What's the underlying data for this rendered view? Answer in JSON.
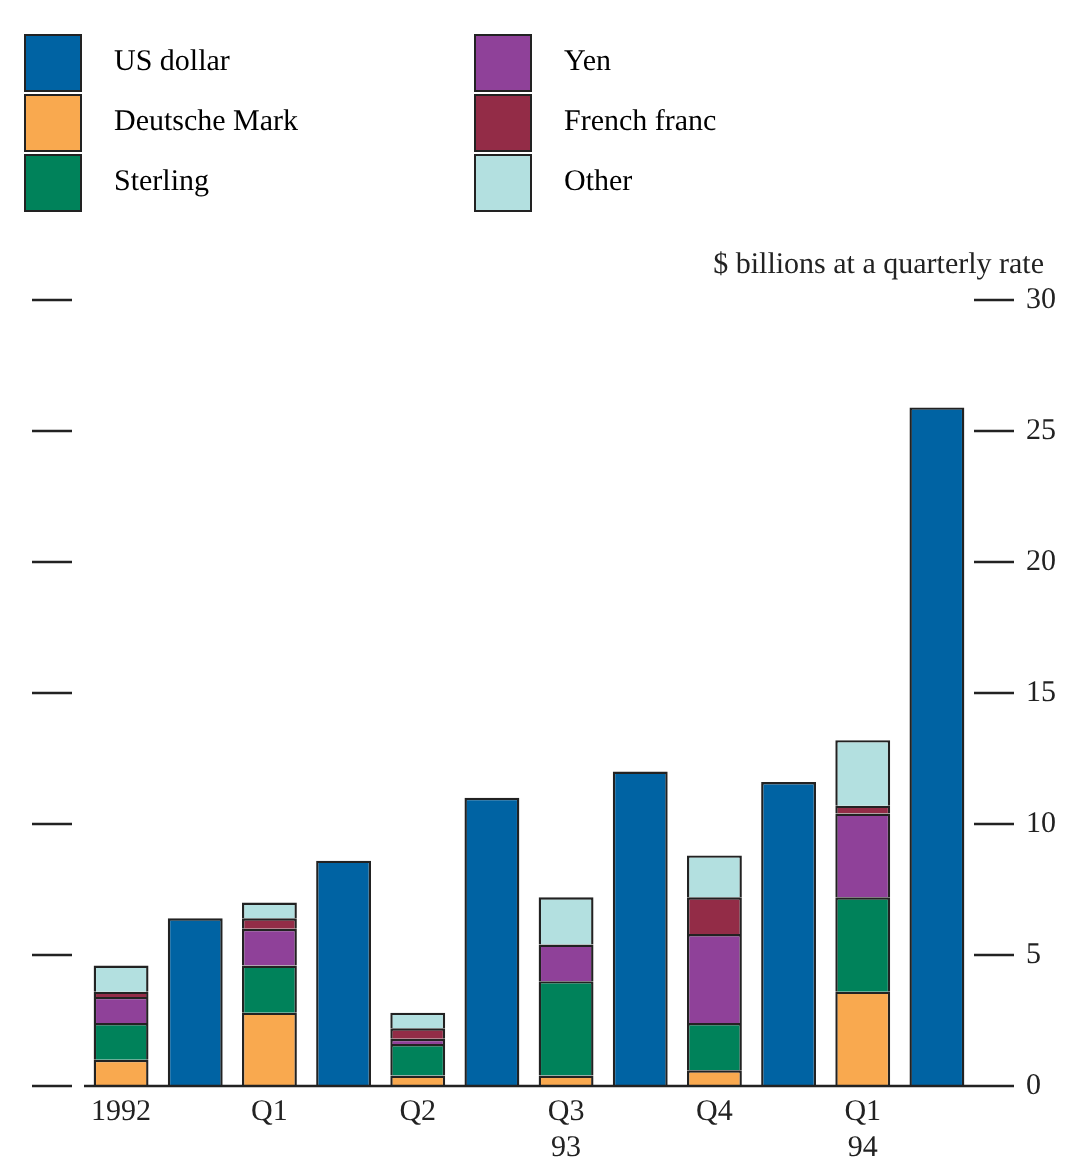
{
  "chart_data": {
    "type": "bar",
    "stacked": true,
    "ylabel": "$ billions at a quarterly rate",
    "categories": [
      "1992",
      null,
      "Q1",
      null,
      "Q2",
      null,
      "Q3\n93",
      null,
      "Q4",
      null,
      "Q1\n94",
      null
    ],
    "series": [
      {
        "name": "US dollar",
        "color": "#0063a3",
        "values": [
          null,
          6.4,
          null,
          8.6,
          null,
          11.0,
          null,
          12.0,
          null,
          11.6,
          null,
          25.9
        ]
      },
      {
        "name": "Deutsche Mark",
        "color": "#f9a94f",
        "values": [
          1.0,
          null,
          2.8,
          null,
          0.4,
          null,
          0.4,
          null,
          0.6,
          null,
          3.6,
          null
        ]
      },
      {
        "name": "Sterling",
        "color": "#00825a",
        "values": [
          1.4,
          null,
          1.8,
          null,
          1.2,
          null,
          3.6,
          null,
          1.8,
          null,
          3.6,
          null
        ]
      },
      {
        "name": "Yen",
        "color": "#8f4199",
        "values": [
          1.0,
          null,
          1.4,
          null,
          0.2,
          null,
          1.4,
          null,
          3.4,
          null,
          3.2,
          null
        ]
      },
      {
        "name": "French franc",
        "color": "#932c47",
        "values": [
          0.2,
          null,
          0.4,
          null,
          0.4,
          null,
          null,
          null,
          1.4,
          null,
          0.3,
          null
        ]
      },
      {
        "name": "Other",
        "color": "#b3e0e0",
        "values": [
          1.0,
          null,
          0.6,
          null,
          0.6,
          null,
          1.8,
          null,
          1.6,
          null,
          2.5,
          null
        ]
      }
    ],
    "ylim": [
      0,
      30
    ],
    "yticks": [
      0,
      5,
      10,
      15,
      20,
      25,
      30
    ],
    "grid": false,
    "legend": "top left"
  }
}
